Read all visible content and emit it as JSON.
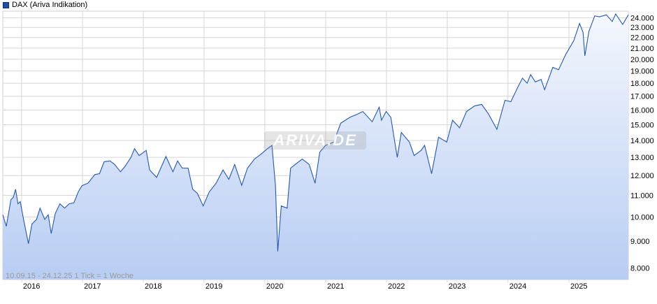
{
  "legend": {
    "label": "DAX (Ariva Indikation)",
    "color": "#1c4fa8"
  },
  "watermark": "ARIVA.DE",
  "range_note": "10.09.15 - 24.12.25    1 Tick = 1 Woche",
  "colors": {
    "line": "#2458b8",
    "fill_top": "#f4f7fd",
    "fill_bottom": "#b8cdf3",
    "grid": "#d6d6d6"
  },
  "chart_data": {
    "type": "area",
    "title": "DAX (Ariva Indikation)",
    "y_scale": "log",
    "ylim": [
      7600,
      24700
    ],
    "y_ticks": [
      {
        "value": 8000,
        "label": "8.000"
      },
      {
        "value": 9000,
        "label": "9.000"
      },
      {
        "value": 10000,
        "label": "10.000"
      },
      {
        "value": 11000,
        "label": "11.000"
      },
      {
        "value": 12000,
        "label": "12.000"
      },
      {
        "value": 13000,
        "label": "13.000"
      },
      {
        "value": 14000,
        "label": "14.000"
      },
      {
        "value": 15000,
        "label": "15.000"
      },
      {
        "value": 16000,
        "label": "16.000"
      },
      {
        "value": 17000,
        "label": "17.000"
      },
      {
        "value": 18000,
        "label": "18.000"
      },
      {
        "value": 19000,
        "label": "19.000"
      },
      {
        "value": 20000,
        "label": "20.000"
      },
      {
        "value": 21000,
        "label": "21.000"
      },
      {
        "value": 22000,
        "label": "22.000"
      },
      {
        "value": 23000,
        "label": "23.000"
      },
      {
        "value": 24000,
        "label": "24.000"
      }
    ],
    "xlim": [
      "2015-09-10",
      "2025-12-24"
    ],
    "x_ticks": [
      "2016",
      "2017",
      "2018",
      "2019",
      "2020",
      "2021",
      "2022",
      "2023",
      "2024",
      "2025"
    ],
    "grid": true,
    "series": [
      {
        "name": "DAX (Ariva Indikation)",
        "points": [
          [
            "2015-09-10",
            10100
          ],
          [
            "2015-10-01",
            9600
          ],
          [
            "2015-10-29",
            10800
          ],
          [
            "2015-11-12",
            10900
          ],
          [
            "2015-11-26",
            11300
          ],
          [
            "2015-12-10",
            10600
          ],
          [
            "2015-12-24",
            10700
          ],
          [
            "2016-01-14",
            9850
          ],
          [
            "2016-02-11",
            8900
          ],
          [
            "2016-03-03",
            9700
          ],
          [
            "2016-03-31",
            9900
          ],
          [
            "2016-04-21",
            10400
          ],
          [
            "2016-05-19",
            9900
          ],
          [
            "2016-06-09",
            10100
          ],
          [
            "2016-06-27",
            9300
          ],
          [
            "2016-07-21",
            10150
          ],
          [
            "2016-08-18",
            10600
          ],
          [
            "2016-09-15",
            10400
          ],
          [
            "2016-10-13",
            10600
          ],
          [
            "2016-11-10",
            10650
          ],
          [
            "2016-12-08",
            11200
          ],
          [
            "2016-12-29",
            11480
          ],
          [
            "2017-02-02",
            11600
          ],
          [
            "2017-03-16",
            12050
          ],
          [
            "2017-04-13",
            12100
          ],
          [
            "2017-05-11",
            12750
          ],
          [
            "2017-06-15",
            12800
          ],
          [
            "2017-07-13",
            12600
          ],
          [
            "2017-08-17",
            12200
          ],
          [
            "2017-09-14",
            12500
          ],
          [
            "2017-10-19",
            13000
          ],
          [
            "2017-11-09",
            13500
          ],
          [
            "2017-12-07",
            13100
          ],
          [
            "2018-01-18",
            13400
          ],
          [
            "2018-02-08",
            12300
          ],
          [
            "2018-03-22",
            11900
          ],
          [
            "2018-05-17",
            13050
          ],
          [
            "2018-06-28",
            12200
          ],
          [
            "2018-07-26",
            12800
          ],
          [
            "2018-08-23",
            12400
          ],
          [
            "2018-09-27",
            12400
          ],
          [
            "2018-10-25",
            11300
          ],
          [
            "2018-11-22",
            11100
          ],
          [
            "2018-12-27",
            10500
          ],
          [
            "2019-01-31",
            11150
          ],
          [
            "2019-03-14",
            11600
          ],
          [
            "2019-04-25",
            12300
          ],
          [
            "2019-05-30",
            11800
          ],
          [
            "2019-07-04",
            12600
          ],
          [
            "2019-08-15",
            11500
          ],
          [
            "2019-09-19",
            12400
          ],
          [
            "2019-10-31",
            12900
          ],
          [
            "2019-12-12",
            13200
          ],
          [
            "2020-01-16",
            13500
          ],
          [
            "2020-02-13",
            13700
          ],
          [
            "2020-03-05",
            11500
          ],
          [
            "2020-03-19",
            8600
          ],
          [
            "2020-04-09",
            10500
          ],
          [
            "2020-05-14",
            10400
          ],
          [
            "2020-06-04",
            12400
          ],
          [
            "2020-07-02",
            12600
          ],
          [
            "2020-08-13",
            12900
          ],
          [
            "2020-09-24",
            12600
          ],
          [
            "2020-10-29",
            11600
          ],
          [
            "2020-11-26",
            13300
          ],
          [
            "2020-12-31",
            13700
          ],
          [
            "2021-02-18",
            13900
          ],
          [
            "2021-04-01",
            15100
          ],
          [
            "2021-05-27",
            15500
          ],
          [
            "2021-07-08",
            15700
          ],
          [
            "2021-08-12",
            15900
          ],
          [
            "2021-10-07",
            15200
          ],
          [
            "2021-11-18",
            16200
          ],
          [
            "2021-12-02",
            15300
          ],
          [
            "2021-12-30",
            15900
          ],
          [
            "2022-01-27",
            15500
          ],
          [
            "2022-03-07",
            13000
          ],
          [
            "2022-03-31",
            14500
          ],
          [
            "2022-05-19",
            13900
          ],
          [
            "2022-06-16",
            13100
          ],
          [
            "2022-07-28",
            13400
          ],
          [
            "2022-08-18",
            13700
          ],
          [
            "2022-09-29",
            12100
          ],
          [
            "2022-11-10",
            14200
          ],
          [
            "2022-12-29",
            13900
          ],
          [
            "2023-02-02",
            15300
          ],
          [
            "2023-03-16",
            14800
          ],
          [
            "2023-04-27",
            15900
          ],
          [
            "2023-06-15",
            16300
          ],
          [
            "2023-07-27",
            16400
          ],
          [
            "2023-09-07",
            15700
          ],
          [
            "2023-10-26",
            14700
          ],
          [
            "2023-12-14",
            16700
          ],
          [
            "2024-01-18",
            16600
          ],
          [
            "2024-02-29",
            17700
          ],
          [
            "2024-03-28",
            18400
          ],
          [
            "2024-04-25",
            18000
          ],
          [
            "2024-05-16",
            18700
          ],
          [
            "2024-06-13",
            18100
          ],
          [
            "2024-07-18",
            18300
          ],
          [
            "2024-08-08",
            17500
          ],
          [
            "2024-09-26",
            19300
          ],
          [
            "2024-10-31",
            19100
          ],
          [
            "2024-12-12",
            20400
          ],
          [
            "2025-01-30",
            21700
          ],
          [
            "2025-03-06",
            23400
          ],
          [
            "2025-03-27",
            22500
          ],
          [
            "2025-04-07",
            20300
          ],
          [
            "2025-05-01",
            22600
          ],
          [
            "2025-06-05",
            24200
          ],
          [
            "2025-07-03",
            24100
          ],
          [
            "2025-08-14",
            24300
          ],
          [
            "2025-09-18",
            23600
          ],
          [
            "2025-10-09",
            24400
          ],
          [
            "2025-11-20",
            23300
          ],
          [
            "2025-12-24",
            24300
          ]
        ]
      }
    ]
  }
}
